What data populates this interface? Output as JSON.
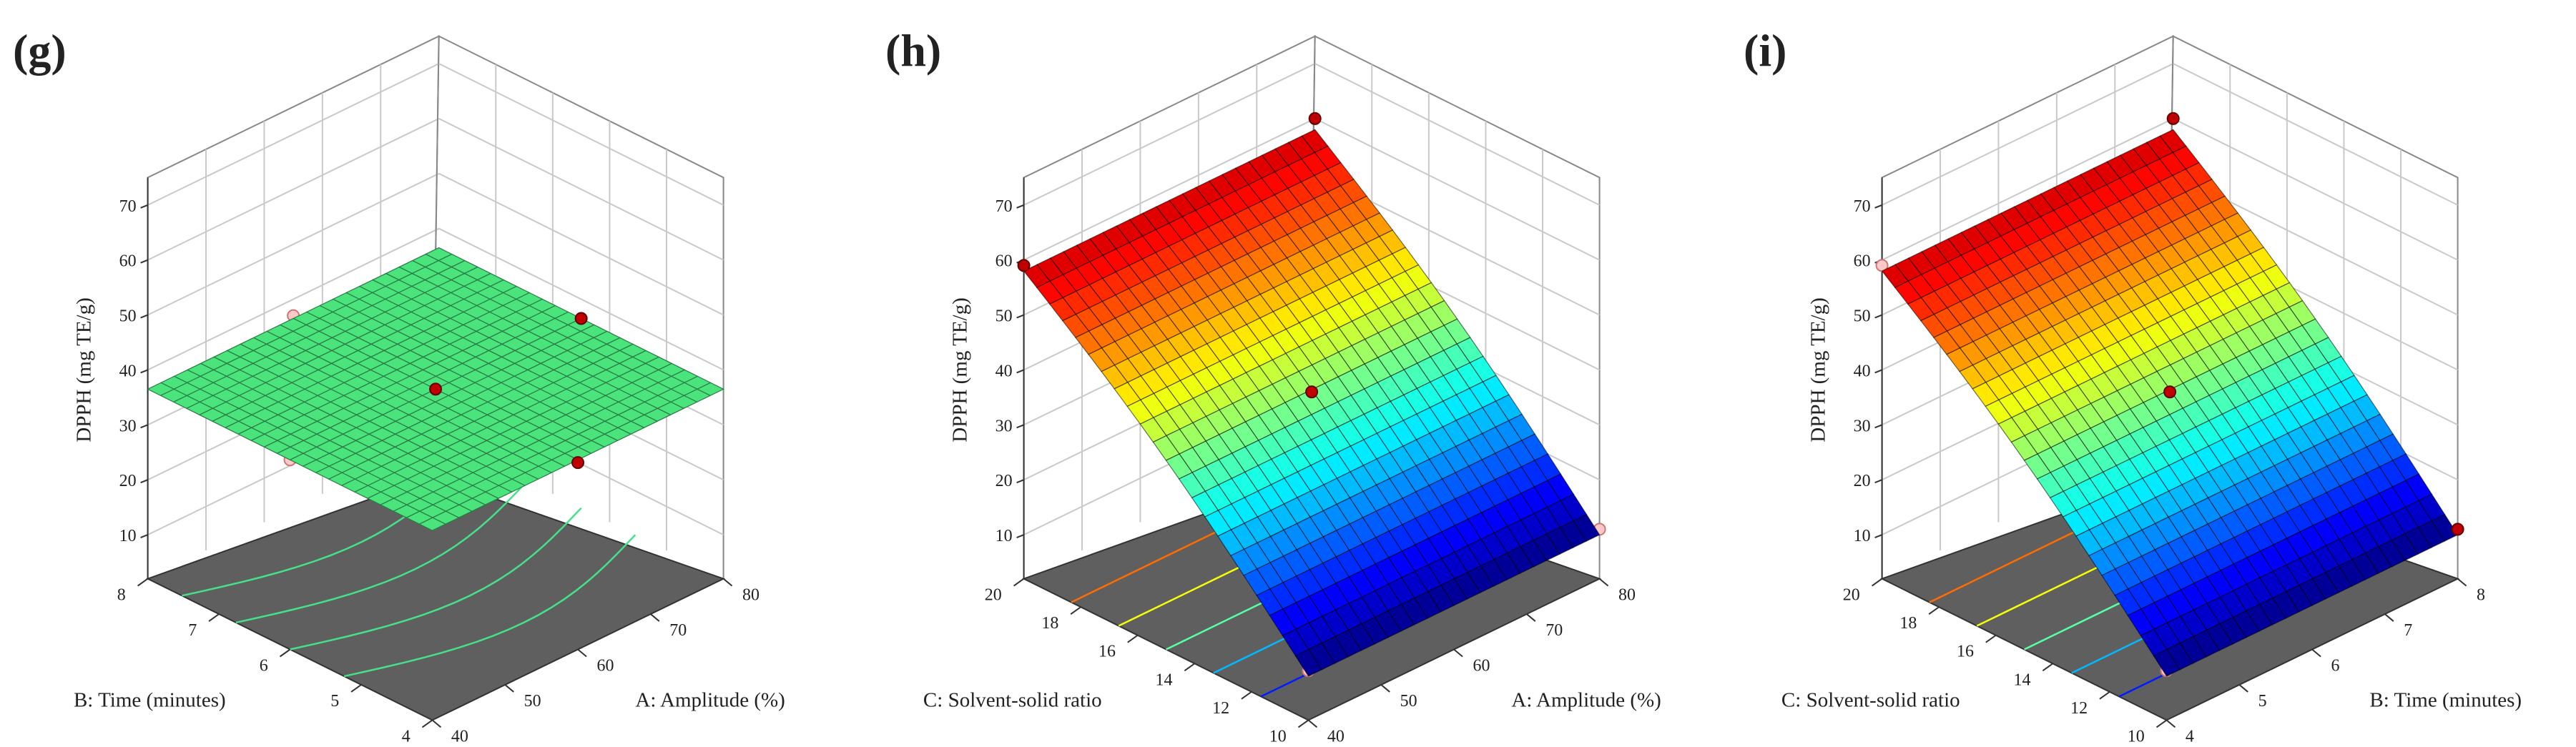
{
  "chart_data": [
    {
      "type": "surface3d",
      "panel_label": "(g)",
      "zlabel": "DPPH (mg TE/g)",
      "zticks": [
        "10",
        "20",
        "30",
        "40",
        "50",
        "60",
        "70"
      ],
      "zlim": [
        10,
        70
      ],
      "x_axis": {
        "label": "A: Amplitude (%)",
        "ticks": [
          "40",
          "50",
          "60",
          "70",
          "80"
        ],
        "lim": [
          40,
          80
        ]
      },
      "y_axis": {
        "label": "B: Time (minutes)",
        "ticks": [
          "4",
          "5",
          "6",
          "7",
          "8"
        ],
        "lim": [
          4,
          8
        ]
      },
      "surface_corners": {
        "x_min_y_min": 36.5,
        "x_max_y_min": 36.5,
        "x_min_y_max": 36.5,
        "x_max_y_max": 36.5
      },
      "design_points": [
        {
          "x": 60,
          "y": 6,
          "z": 36.5,
          "side": "above"
        },
        {
          "x": 80,
          "y": 6,
          "z": 36.5,
          "side": "above"
        },
        {
          "x": 40,
          "y": 6,
          "z": 36.5,
          "side": "below"
        },
        {
          "x": 60,
          "y": 8,
          "z": 37,
          "side": "below"
        },
        {
          "x": 60,
          "y": 4,
          "z": 36,
          "side": "above"
        }
      ],
      "colormap": "flat-green"
    },
    {
      "type": "surface3d",
      "panel_label": "(h)",
      "zlabel": "DPPH (mg TE/g)",
      "zticks": [
        "10",
        "20",
        "30",
        "40",
        "50",
        "60",
        "70"
      ],
      "zlim": [
        10,
        70
      ],
      "x_axis": {
        "label": "A: Amplitude (%)",
        "ticks": [
          "40",
          "50",
          "60",
          "70",
          "80"
        ],
        "lim": [
          40,
          80
        ]
      },
      "y_axis": {
        "label": "C: Solvent-solid ratio",
        "ticks": [
          "10",
          "12",
          "14",
          "16",
          "18",
          "20"
        ],
        "lim": [
          10,
          20
        ]
      },
      "surface_corners": {
        "x_min_y_min": 10,
        "x_max_y_min": 10,
        "x_min_y_max": 58,
        "x_max_y_max": 58
      },
      "design_points": [
        {
          "x": 60,
          "y": 15,
          "z": 36,
          "side": "above"
        },
        {
          "x": 40,
          "y": 20,
          "z": 59,
          "side": "above"
        },
        {
          "x": 80,
          "y": 20,
          "z": 60,
          "side": "above"
        },
        {
          "x": 80,
          "y": 10,
          "z": 11,
          "side": "below"
        },
        {
          "x": 40,
          "y": 10,
          "z": 11,
          "side": "below"
        }
      ],
      "colormap": "jet"
    },
    {
      "type": "surface3d",
      "panel_label": "(i)",
      "zlabel": "DPPH (mg TE/g)",
      "zticks": [
        "10",
        "20",
        "30",
        "40",
        "50",
        "60",
        "70"
      ],
      "zlim": [
        10,
        70
      ],
      "x_axis": {
        "label": "B: Time (minutes)",
        "ticks": [
          "4",
          "5",
          "6",
          "7",
          "8"
        ],
        "lim": [
          4,
          8
        ]
      },
      "y_axis": {
        "label": "C: Solvent-solid ratio",
        "ticks": [
          "10",
          "12",
          "14",
          "16",
          "18",
          "20"
        ],
        "lim": [
          10,
          20
        ]
      },
      "surface_corners": {
        "x_min_y_min": 10,
        "x_max_y_min": 10,
        "x_min_y_max": 58,
        "x_max_y_max": 58
      },
      "design_points": [
        {
          "x": 6,
          "y": 15,
          "z": 36,
          "side": "above"
        },
        {
          "x": 4,
          "y": 20,
          "z": 59,
          "side": "below"
        },
        {
          "x": 8,
          "y": 20,
          "z": 60,
          "side": "above"
        },
        {
          "x": 8,
          "y": 10,
          "z": 11,
          "side": "above"
        },
        {
          "x": 4,
          "y": 10,
          "z": 11,
          "side": "below"
        }
      ],
      "colormap": "jet"
    }
  ]
}
